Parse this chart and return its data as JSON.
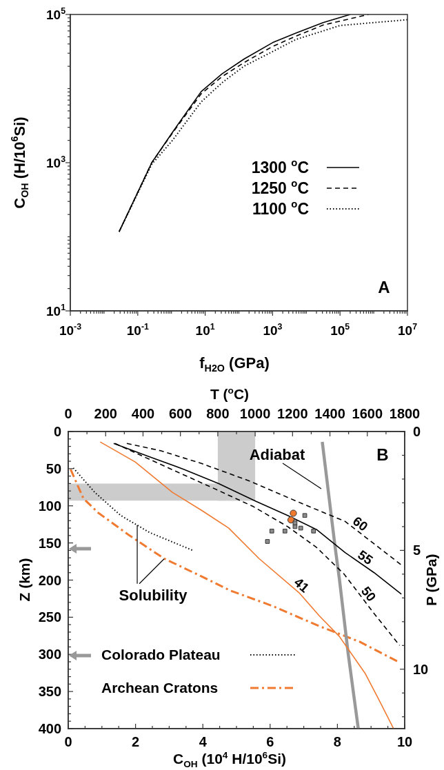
{
  "chart_data": [
    {
      "type": "line",
      "xlabel": "f$_{H2O}$ (GPa)",
      "ylabel": "C$_{OH}$ (H/10$^{6}$Si)",
      "log": "xy",
      "legend": "center",
      "xlim": [
        0.001,
        10000000
      ],
      "ylim": [
        10,
        100000
      ],
      "xticks": [
        {
          "value": 0.001,
          "label": "10$^{-3}$"
        },
        {
          "value": 0.1,
          "label": "10$^{-1}$"
        },
        {
          "value": 10,
          "label": "10$^{1}$"
        },
        {
          "value": 1000,
          "label": "10$^{3}$"
        },
        {
          "value": 100000,
          "label": "10$^{5}$"
        },
        {
          "value": 10000000,
          "label": "10$^{7}$"
        },
        {
          "value": 0.01,
          "label": null
        },
        {
          "value": 1,
          "label": null
        },
        {
          "value": 100,
          "label": null
        },
        {
          "value": 10000,
          "label": null
        },
        {
          "value": 1000000,
          "label": null
        },
        {
          "value": 0.002,
          "label": null
        },
        {
          "value": 0.003,
          "label": null
        },
        {
          "value": 0.004,
          "label": null
        },
        {
          "value": 0.005,
          "label": null
        },
        {
          "value": 0.006,
          "label": null
        },
        {
          "value": 0.007,
          "label": null
        },
        {
          "value": 0.008,
          "label": null
        },
        {
          "value": 0.009,
          "label": null
        },
        {
          "value": 0.02,
          "label": null
        },
        {
          "value": 0.03,
          "label": null
        },
        {
          "value": 0.04,
          "label": null
        },
        {
          "value": 0.05,
          "label": null
        },
        {
          "value": 0.06,
          "label": null
        },
        {
          "value": 0.07,
          "label": null
        },
        {
          "value": 0.08,
          "label": null
        },
        {
          "value": 0.09,
          "label": null
        },
        {
          "value": 0.2,
          "label": null
        },
        {
          "value": 0.3,
          "label": null
        },
        {
          "value": 0.4,
          "label": null
        },
        {
          "value": 0.5,
          "label": null
        },
        {
          "value": 0.6,
          "label": null
        },
        {
          "value": 0.7,
          "label": null
        },
        {
          "value": 0.8,
          "label": null
        },
        {
          "value": 0.9,
          "label": null
        },
        {
          "value": 2,
          "label": null
        },
        {
          "value": 3,
          "label": null
        },
        {
          "value": 4,
          "label": null
        },
        {
          "value": 5,
          "label": null
        },
        {
          "value": 6,
          "label": null
        },
        {
          "value": 7,
          "label": null
        },
        {
          "value": 8,
          "label": null
        },
        {
          "value": 9,
          "label": null
        },
        {
          "value": 20,
          "label": null
        },
        {
          "value": 30,
          "label": null
        },
        {
          "value": 40,
          "label": null
        },
        {
          "value": 50,
          "label": null
        },
        {
          "value": 60,
          "label": null
        },
        {
          "value": 70,
          "label": null
        },
        {
          "value": 80,
          "label": null
        },
        {
          "value": 90,
          "label": null
        },
        {
          "value": 200,
          "label": null
        },
        {
          "value": 300,
          "label": null
        },
        {
          "value": 400,
          "label": null
        },
        {
          "value": 500,
          "label": null
        },
        {
          "value": 600,
          "label": null
        },
        {
          "value": 700,
          "label": null
        },
        {
          "value": 800,
          "label": null
        },
        {
          "value": 900,
          "label": null
        },
        {
          "value": 2000.0,
          "label": null
        },
        {
          "value": 3000.0,
          "label": null
        },
        {
          "value": 4000.0,
          "label": null
        },
        {
          "value": 5000.0,
          "label": null
        },
        {
          "value": 6000.0,
          "label": null
        },
        {
          "value": 7000.0,
          "label": null
        },
        {
          "value": 8000.0,
          "label": null
        },
        {
          "value": 9000.0,
          "label": null
        },
        {
          "value": 20000.0,
          "label": null
        },
        {
          "value": 30000.0,
          "label": null
        },
        {
          "value": 40000.0,
          "label": null
        },
        {
          "value": 50000.0,
          "label": null
        },
        {
          "value": 60000.0,
          "label": null
        },
        {
          "value": 70000.0,
          "label": null
        },
        {
          "value": 80000.0,
          "label": null
        },
        {
          "value": 90000.0,
          "label": null
        },
        {
          "value": 200000.0,
          "label": null
        },
        {
          "value": 300000.0,
          "label": null
        },
        {
          "value": 400000.0,
          "label": null
        },
        {
          "value": 500000.0,
          "label": null
        },
        {
          "value": 600000.0,
          "label": null
        },
        {
          "value": 700000.0,
          "label": null
        },
        {
          "value": 800000.0,
          "label": null
        },
        {
          "value": 900000.0,
          "label": null
        },
        {
          "value": 2000000.0,
          "label": null
        },
        {
          "value": 3000000.0,
          "label": null
        },
        {
          "value": 4000000.0,
          "label": null
        },
        {
          "value": 5000000.0,
          "label": null
        },
        {
          "value": 6000000.0,
          "label": null
        },
        {
          "value": 7000000.0,
          "label": null
        },
        {
          "value": 8000000.0,
          "label": null
        },
        {
          "value": 9000000.0,
          "label": null
        }
      ],
      "yticks": [
        {
          "value": 10,
          "label": "10$^{1}$"
        },
        {
          "value": 1000,
          "label": "10$^{3}$"
        },
        {
          "value": 100000,
          "label": "10$^{5}$"
        },
        {
          "value": 100,
          "label": null
        },
        {
          "value": 10000,
          "label": null
        },
        {
          "value": 20,
          "label": null
        },
        {
          "value": 30,
          "label": null
        },
        {
          "value": 40,
          "label": null
        },
        {
          "value": 50,
          "label": null
        },
        {
          "value": 60,
          "label": null
        },
        {
          "value": 70,
          "label": null
        },
        {
          "value": 80,
          "label": null
        },
        {
          "value": 90,
          "label": null
        },
        {
          "value": 200,
          "label": null
        },
        {
          "value": 300,
          "label": null
        },
        {
          "value": 400,
          "label": null
        },
        {
          "value": 500,
          "label": null
        },
        {
          "value": 600,
          "label": null
        },
        {
          "value": 700,
          "label": null
        },
        {
          "value": 800,
          "label": null
        },
        {
          "value": 900,
          "label": null
        },
        {
          "value": 2000.0,
          "label": null
        },
        {
          "value": 3000.0,
          "label": null
        },
        {
          "value": 4000.0,
          "label": null
        },
        {
          "value": 5000.0,
          "label": null
        },
        {
          "value": 6000.0,
          "label": null
        },
        {
          "value": 7000.0,
          "label": null
        },
        {
          "value": 8000.0,
          "label": null
        },
        {
          "value": 9000.0,
          "label": null
        },
        {
          "value": 20000.0,
          "label": null
        },
        {
          "value": 30000.0,
          "label": null
        },
        {
          "value": 40000.0,
          "label": null
        },
        {
          "value": 50000.0,
          "label": null
        },
        {
          "value": 60000.0,
          "label": null
        },
        {
          "value": 70000.0,
          "label": null
        },
        {
          "value": 80000.0,
          "label": null
        },
        {
          "value": 90000.0,
          "label": null
        }
      ],
      "series": [
        {
          "name": "1300 $^{o}$C",
          "color": "#000000",
          "line_style": "solid",
          "x": [
            0.028,
            0.26,
            1.07,
            7.6,
            31.6,
            141,
            1000,
            4900,
            31600,
            200000
          ],
          "values": [
            117,
            1000,
            2570,
            9100,
            15800,
            25000,
            41700,
            56000,
            77600,
            100000
          ]
        },
        {
          "name": "1250 $^{o}$C",
          "color": "#000000",
          "line_style": "dashed",
          "x": [
            0.028,
            0.26,
            1.07,
            7.6,
            31.6,
            141,
            1000,
            4900,
            31600,
            700000
          ],
          "values": [
            117,
            1000,
            2510,
            8500,
            14500,
            22400,
            37000,
            51000,
            72000,
            100000
          ]
        },
        {
          "name": "1100 $^{o}$C",
          "color": "#000000",
          "line_style": "dotted",
          "x": [
            0.028,
            0.26,
            1.07,
            7.6,
            31.6,
            141,
            1000,
            4900,
            31600,
            100000,
            10000000
          ],
          "values": [
            117,
            950,
            2000,
            6600,
            12000,
            20000,
            31600,
            46000,
            60000,
            71000,
            85000
          ]
        }
      ],
      "annotations": [
        "A"
      ]
    },
    {
      "type": "line",
      "xlabel": "C$_{OH}$ (10$^{4}$ H/10$^{6}$Si)",
      "ylabel": "Z (km)",
      "x2label": "T ($^{o}$C)",
      "y2label": "P (GPa)",
      "legend": "bottom left",
      "xlim": [
        0,
        10
      ],
      "ylim": [
        400,
        0
      ],
      "x2lim": [
        0,
        1800
      ],
      "y2lim": [
        12.5,
        0
      ],
      "xticks": [
        0,
        2,
        4,
        6,
        8,
        10,
        {
          "value": 0.5,
          "label": null
        },
        {
          "value": 1,
          "label": null
        },
        {
          "value": 1.5,
          "label": null
        },
        {
          "value": 2.5,
          "label": null
        },
        {
          "value": 3,
          "label": null
        },
        {
          "value": 3.5,
          "label": null
        },
        {
          "value": 4.5,
          "label": null
        },
        {
          "value": 5,
          "label": null
        },
        {
          "value": 5.5,
          "label": null
        },
        {
          "value": 6.5,
          "label": null
        },
        {
          "value": 7,
          "label": null
        },
        {
          "value": 7.5,
          "label": null
        },
        {
          "value": 8.5,
          "label": null
        },
        {
          "value": 9,
          "label": null
        },
        {
          "value": 9.5,
          "label": null
        }
      ],
      "yticks": [
        0,
        50,
        100,
        150,
        200,
        250,
        300,
        350,
        400,
        {
          "value": 10,
          "label": null
        },
        {
          "value": 20,
          "label": null
        },
        {
          "value": 30,
          "label": null
        },
        {
          "value": 40,
          "label": null
        },
        {
          "value": 60,
          "label": null
        },
        {
          "value": 70,
          "label": null
        },
        {
          "value": 80,
          "label": null
        },
        {
          "value": 90,
          "label": null
        },
        {
          "value": 110,
          "label": null
        },
        {
          "value": 120,
          "label": null
        },
        {
          "value": 130,
          "label": null
        },
        {
          "value": 140,
          "label": null
        },
        {
          "value": 160,
          "label": null
        },
        {
          "value": 170,
          "label": null
        },
        {
          "value": 180,
          "label": null
        },
        {
          "value": 190,
          "label": null
        },
        {
          "value": 210,
          "label": null
        },
        {
          "value": 220,
          "label": null
        },
        {
          "value": 230,
          "label": null
        },
        {
          "value": 240,
          "label": null
        },
        {
          "value": 260,
          "label": null
        },
        {
          "value": 270,
          "label": null
        },
        {
          "value": 280,
          "label": null
        },
        {
          "value": 290,
          "label": null
        },
        {
          "value": 310,
          "label": null
        },
        {
          "value": 320,
          "label": null
        },
        {
          "value": 330,
          "label": null
        },
        {
          "value": 340,
          "label": null
        },
        {
          "value": 360,
          "label": null
        },
        {
          "value": 370,
          "label": null
        },
        {
          "value": 380,
          "label": null
        },
        {
          "value": 390,
          "label": null
        }
      ],
      "x2ticks": [
        0,
        200,
        400,
        600,
        800,
        1000,
        1200,
        1400,
        1600,
        1800,
        {
          "value": 100,
          "label": null
        },
        {
          "value": 300,
          "label": null
        },
        {
          "value": 500,
          "label": null
        },
        {
          "value": 700,
          "label": null
        },
        {
          "value": 900,
          "label": null
        },
        {
          "value": 1100,
          "label": null
        },
        {
          "value": 1300,
          "label": null
        },
        {
          "value": 1500,
          "label": null
        },
        {
          "value": 1700,
          "label": null
        }
      ],
      "y2ticks": [
        0,
        5,
        10,
        {
          "value": 1,
          "label": null
        },
        {
          "value": 2,
          "label": null
        },
        {
          "value": 3,
          "label": null
        },
        {
          "value": 4,
          "label": null
        },
        {
          "value": 6,
          "label": null
        },
        {
          "value": 7,
          "label": null
        },
        {
          "value": 8,
          "label": null
        },
        {
          "value": 9,
          "label": null
        },
        {
          "value": 11,
          "label": null
        },
        {
          "value": 12,
          "label": null
        }
      ],
      "bands": [
        {
          "axis": "x2",
          "from": 800,
          "to": 1000,
          "color": "#cccccc"
        },
        {
          "axis": "y",
          "from": 70,
          "to": 93,
          "color": "#cccccc"
        }
      ],
      "series": [
        {
          "name": "60",
          "color": "#000000",
          "line_style": "dashed",
          "x": [
            1.74,
            2.76,
            3.96,
            5.41,
            6.95,
            8.23,
            9.94
          ],
          "values": [
            16,
            26,
            43,
            67,
            97,
            121,
            181
          ]
        },
        {
          "name": "55",
          "color": "#000000",
          "line_style": "solid",
          "x": [
            1.35,
            2.42,
            3.44,
            4.47,
            5.58,
            6.52,
            7.38,
            8.23,
            9.09,
            9.9
          ],
          "values": [
            16,
            34,
            51,
            70,
            94,
            113,
            132,
            163,
            190,
            219
          ]
        },
        {
          "name": "50",
          "color": "#000000",
          "line_style": "dashed",
          "x": [
            1.39,
            2.25,
            3.27,
            4.3,
            5.5,
            6.52,
            7.38,
            8.2,
            9.09,
            9.85
          ],
          "values": [
            16,
            34,
            55,
            76,
            101,
            128,
            156,
            192,
            245,
            288
          ]
        },
        {
          "name": "41",
          "color": "#f07a30",
          "line_style": "solid",
          "x": [
            0.95,
            1.99,
            3.1,
            3.96,
            4.77,
            5.67,
            6.86,
            7.46,
            8.06,
            8.83,
            9.21,
            9.67
          ],
          "values": [
            14,
            41,
            82,
            106,
            130,
            171,
            217,
            248,
            276,
            326,
            359,
            400
          ]
        },
        {
          "color": "#999999",
          "line_style": "solid",
          "x": [
            7.55,
            7.93,
            8.06,
            8.32,
            8.62
          ],
          "values": [
            14,
            155,
            199,
            299,
            400
          ]
        },
        {
          "name": "Colorado Plateau",
          "color": "#000000",
          "line_style": "dotted",
          "x": [
            0.15,
            0.79,
            1.56,
            2.42,
            3.7
          ],
          "values": [
            49,
            82,
            113,
            136,
            160
          ]
        },
        {
          "name": "Archean Cratons",
          "color": "#f07a30",
          "line_style": "dashdot",
          "x": [
            0.07,
            0.45,
            0.88,
            1.82,
            2.85,
            3.96,
            4.81,
            6.08,
            7.46,
            8.66,
            9.85
          ],
          "values": [
            51,
            90,
            109,
            140,
            171,
            195,
            214,
            235,
            262,
            283,
            311
          ]
        },
        {
          "type": "scatter",
          "marker": "square",
          "color": "#8c8c8c",
          "x": [
            5.92,
            6.05,
            6.44,
            6.74,
            6.74,
            6.91,
            7.29,
            7.03
          ],
          "values": [
            148,
            134,
            134,
            128,
            123,
            130,
            134,
            113
          ]
        },
        {
          "type": "scatter",
          "marker": "circle",
          "color": "#f07a30",
          "x": [
            6.69,
            6.62
          ],
          "values": [
            110,
            119
          ]
        }
      ],
      "annotations": [
        "B",
        "Adiabat",
        {
          "text": "Solubility",
          "x": 2.05,
          "y": 126
        }
      ]
    }
  ]
}
